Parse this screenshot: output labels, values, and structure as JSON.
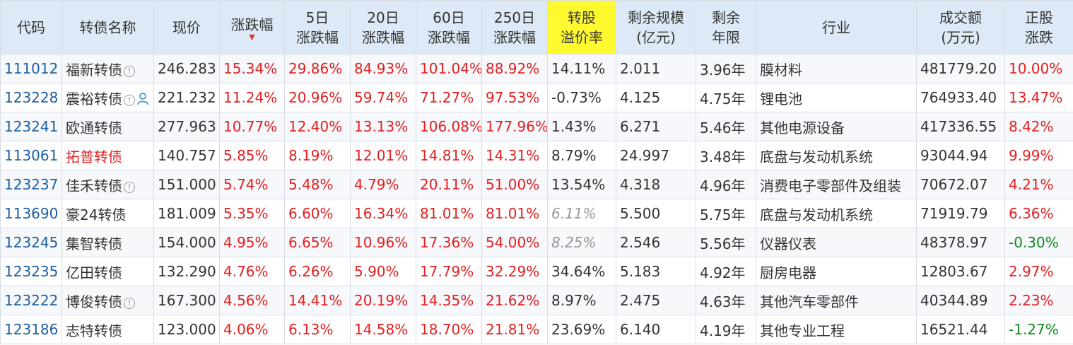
{
  "columns": [
    "代码",
    "转债名称",
    "现价",
    "涨跌幅",
    "5日\n涨跌幅",
    "20日\n涨跌幅",
    "60日\n涨跌幅",
    "250日\n涨跌幅",
    "转股\n溢价率",
    "剩余规模\n(亿元)",
    "剩余\n年限",
    "行业",
    "成交额\n(万元)",
    "正股\n涨跌"
  ],
  "colors": {
    "header_bg": "#dde9f6",
    "highlight": "#fff92f",
    "red": "#e21f1f",
    "green": "#11881f",
    "code": "#1b5ea3"
  },
  "rows": [
    {
      "code": "111012",
      "name": "福新转债",
      "price": "246.283",
      "chg": "15.34%",
      "chg5": "29.86%",
      "chg20": "84.93%",
      "chg60": "101.04%",
      "chg250": "88.92%",
      "premium": "14.11%",
      "scale": "2.011",
      "years": "3.96年",
      "industry": "膜材料",
      "turnover": "481779.20",
      "stock_chg": "10.00%"
    },
    {
      "code": "123228",
      "name": "震裕转债",
      "price": "221.232",
      "chg": "11.24%",
      "chg5": "20.96%",
      "chg20": "59.74%",
      "chg60": "71.27%",
      "chg250": "97.53%",
      "premium": "-0.73%",
      "scale": "4.125",
      "years": "4.75年",
      "industry": "锂电池",
      "turnover": "764933.40",
      "stock_chg": "13.47%"
    },
    {
      "code": "123241",
      "name": "欧通转债",
      "price": "277.963",
      "chg": "10.77%",
      "chg5": "12.40%",
      "chg20": "13.13%",
      "chg60": "106.08%",
      "chg250": "177.96%",
      "premium": "1.43%",
      "scale": "6.271",
      "years": "5.46年",
      "industry": "其他电源设备",
      "turnover": "417336.55",
      "stock_chg": "8.42%"
    },
    {
      "code": "113061",
      "name": "拓普转债",
      "price": "140.757",
      "chg": "5.85%",
      "chg5": "8.19%",
      "chg20": "12.01%",
      "chg60": "14.81%",
      "chg250": "14.31%",
      "premium": "8.79%",
      "scale": "24.997",
      "years": "3.48年",
      "industry": "底盘与发动机系统",
      "turnover": "93044.94",
      "stock_chg": "9.99%"
    },
    {
      "code": "123237",
      "name": "佳禾转债",
      "price": "151.000",
      "chg": "5.74%",
      "chg5": "5.48%",
      "chg20": "4.79%",
      "chg60": "20.11%",
      "chg250": "51.00%",
      "premium": "13.54%",
      "scale": "4.318",
      "years": "4.96年",
      "industry": "消费电子零部件及组装",
      "turnover": "70672.07",
      "stock_chg": "4.21%"
    },
    {
      "code": "113690",
      "name": "豪24转债",
      "price": "181.009",
      "chg": "5.35%",
      "chg5": "6.60%",
      "chg20": "16.34%",
      "chg60": "81.01%",
      "chg250": "81.01%",
      "premium": "6.11%",
      "scale": "5.500",
      "years": "5.75年",
      "industry": "底盘与发动机系统",
      "turnover": "71919.79",
      "stock_chg": "6.36%"
    },
    {
      "code": "123245",
      "name": "集智转债",
      "price": "154.000",
      "chg": "4.95%",
      "chg5": "6.65%",
      "chg20": "10.96%",
      "chg60": "17.36%",
      "chg250": "54.00%",
      "premium": "8.25%",
      "scale": "2.546",
      "years": "5.56年",
      "industry": "仪器仪表",
      "turnover": "48378.97",
      "stock_chg": "-0.30%"
    },
    {
      "code": "123235",
      "name": "亿田转债",
      "price": "132.290",
      "chg": "4.76%",
      "chg5": "6.26%",
      "chg20": "5.90%",
      "chg60": "17.79%",
      "chg250": "32.29%",
      "premium": "34.64%",
      "scale": "5.183",
      "years": "4.92年",
      "industry": "厨房电器",
      "turnover": "12803.67",
      "stock_chg": "2.97%"
    },
    {
      "code": "123222",
      "name": "博俊转债",
      "price": "167.300",
      "chg": "4.56%",
      "chg5": "14.41%",
      "chg20": "20.19%",
      "chg60": "14.35%",
      "chg250": "21.62%",
      "premium": "8.97%",
      "scale": "2.475",
      "years": "4.63年",
      "industry": "其他汽车零部件",
      "turnover": "40344.89",
      "stock_chg": "2.23%"
    },
    {
      "code": "123186",
      "name": "志特转债",
      "price": "123.000",
      "chg": "4.06%",
      "chg5": "6.13%",
      "chg20": "14.58%",
      "chg60": "18.70%",
      "chg250": "21.81%",
      "premium": "23.69%",
      "scale": "6.140",
      "years": "4.19年",
      "industry": "其他专业工程",
      "turnover": "16521.44",
      "stock_chg": "-1.27%"
    }
  ],
  "icons": {
    "info": "info-circle-icon",
    "person": "person-icon",
    "sort": "sort-desc-icon"
  },
  "info_glyph": "!"
}
